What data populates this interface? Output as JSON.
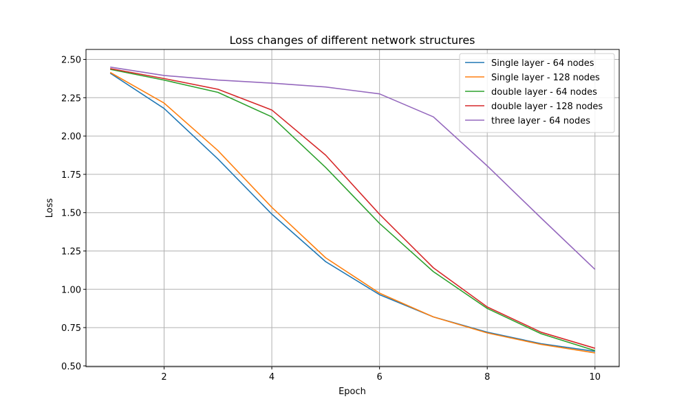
{
  "chart_data": {
    "type": "line",
    "title": "Loss changes of different network structures",
    "xlabel": "Epoch",
    "ylabel": "Loss",
    "x": [
      1,
      2,
      3,
      4,
      5,
      6,
      7,
      8,
      9,
      10
    ],
    "xlim": [
      0.55,
      10.45
    ],
    "ylim": [
      0.495,
      2.565
    ],
    "xticks": [
      2,
      4,
      6,
      8,
      10
    ],
    "yticks": [
      0.5,
      0.75,
      1.0,
      1.25,
      1.5,
      1.75,
      2.0,
      2.25,
      2.5
    ],
    "xtick_labels": [
      "2",
      "4",
      "6",
      "8",
      "10"
    ],
    "ytick_labels": [
      "0.50",
      "0.75",
      "1.00",
      "1.25",
      "1.50",
      "1.75",
      "2.00",
      "2.25",
      "2.50"
    ],
    "grid": true,
    "legend_position": "top-right",
    "series": [
      {
        "name": "Single layer - 64 nodes",
        "color": "#1f77b4",
        "values": [
          2.41,
          2.18,
          1.85,
          1.49,
          1.18,
          0.965,
          0.82,
          0.72,
          0.645,
          0.595
        ]
      },
      {
        "name": "Single layer - 128 nodes",
        "color": "#ff7f0e",
        "values": [
          2.415,
          2.215,
          1.905,
          1.535,
          1.205,
          0.975,
          0.82,
          0.715,
          0.64,
          0.585
        ]
      },
      {
        "name": "double layer - 64 nodes",
        "color": "#2ca02c",
        "values": [
          2.435,
          2.365,
          2.285,
          2.125,
          1.795,
          1.43,
          1.115,
          0.875,
          0.71,
          0.6
        ]
      },
      {
        "name": "double layer - 128 nodes",
        "color": "#d62728",
        "values": [
          2.44,
          2.375,
          2.305,
          2.17,
          1.875,
          1.49,
          1.14,
          0.885,
          0.72,
          0.615
        ]
      },
      {
        "name": "three layer - 64 nodes",
        "color": "#9467bd",
        "values": [
          2.45,
          2.395,
          2.365,
          2.345,
          2.32,
          2.275,
          2.125,
          1.805,
          1.465,
          1.13
        ]
      }
    ]
  }
}
